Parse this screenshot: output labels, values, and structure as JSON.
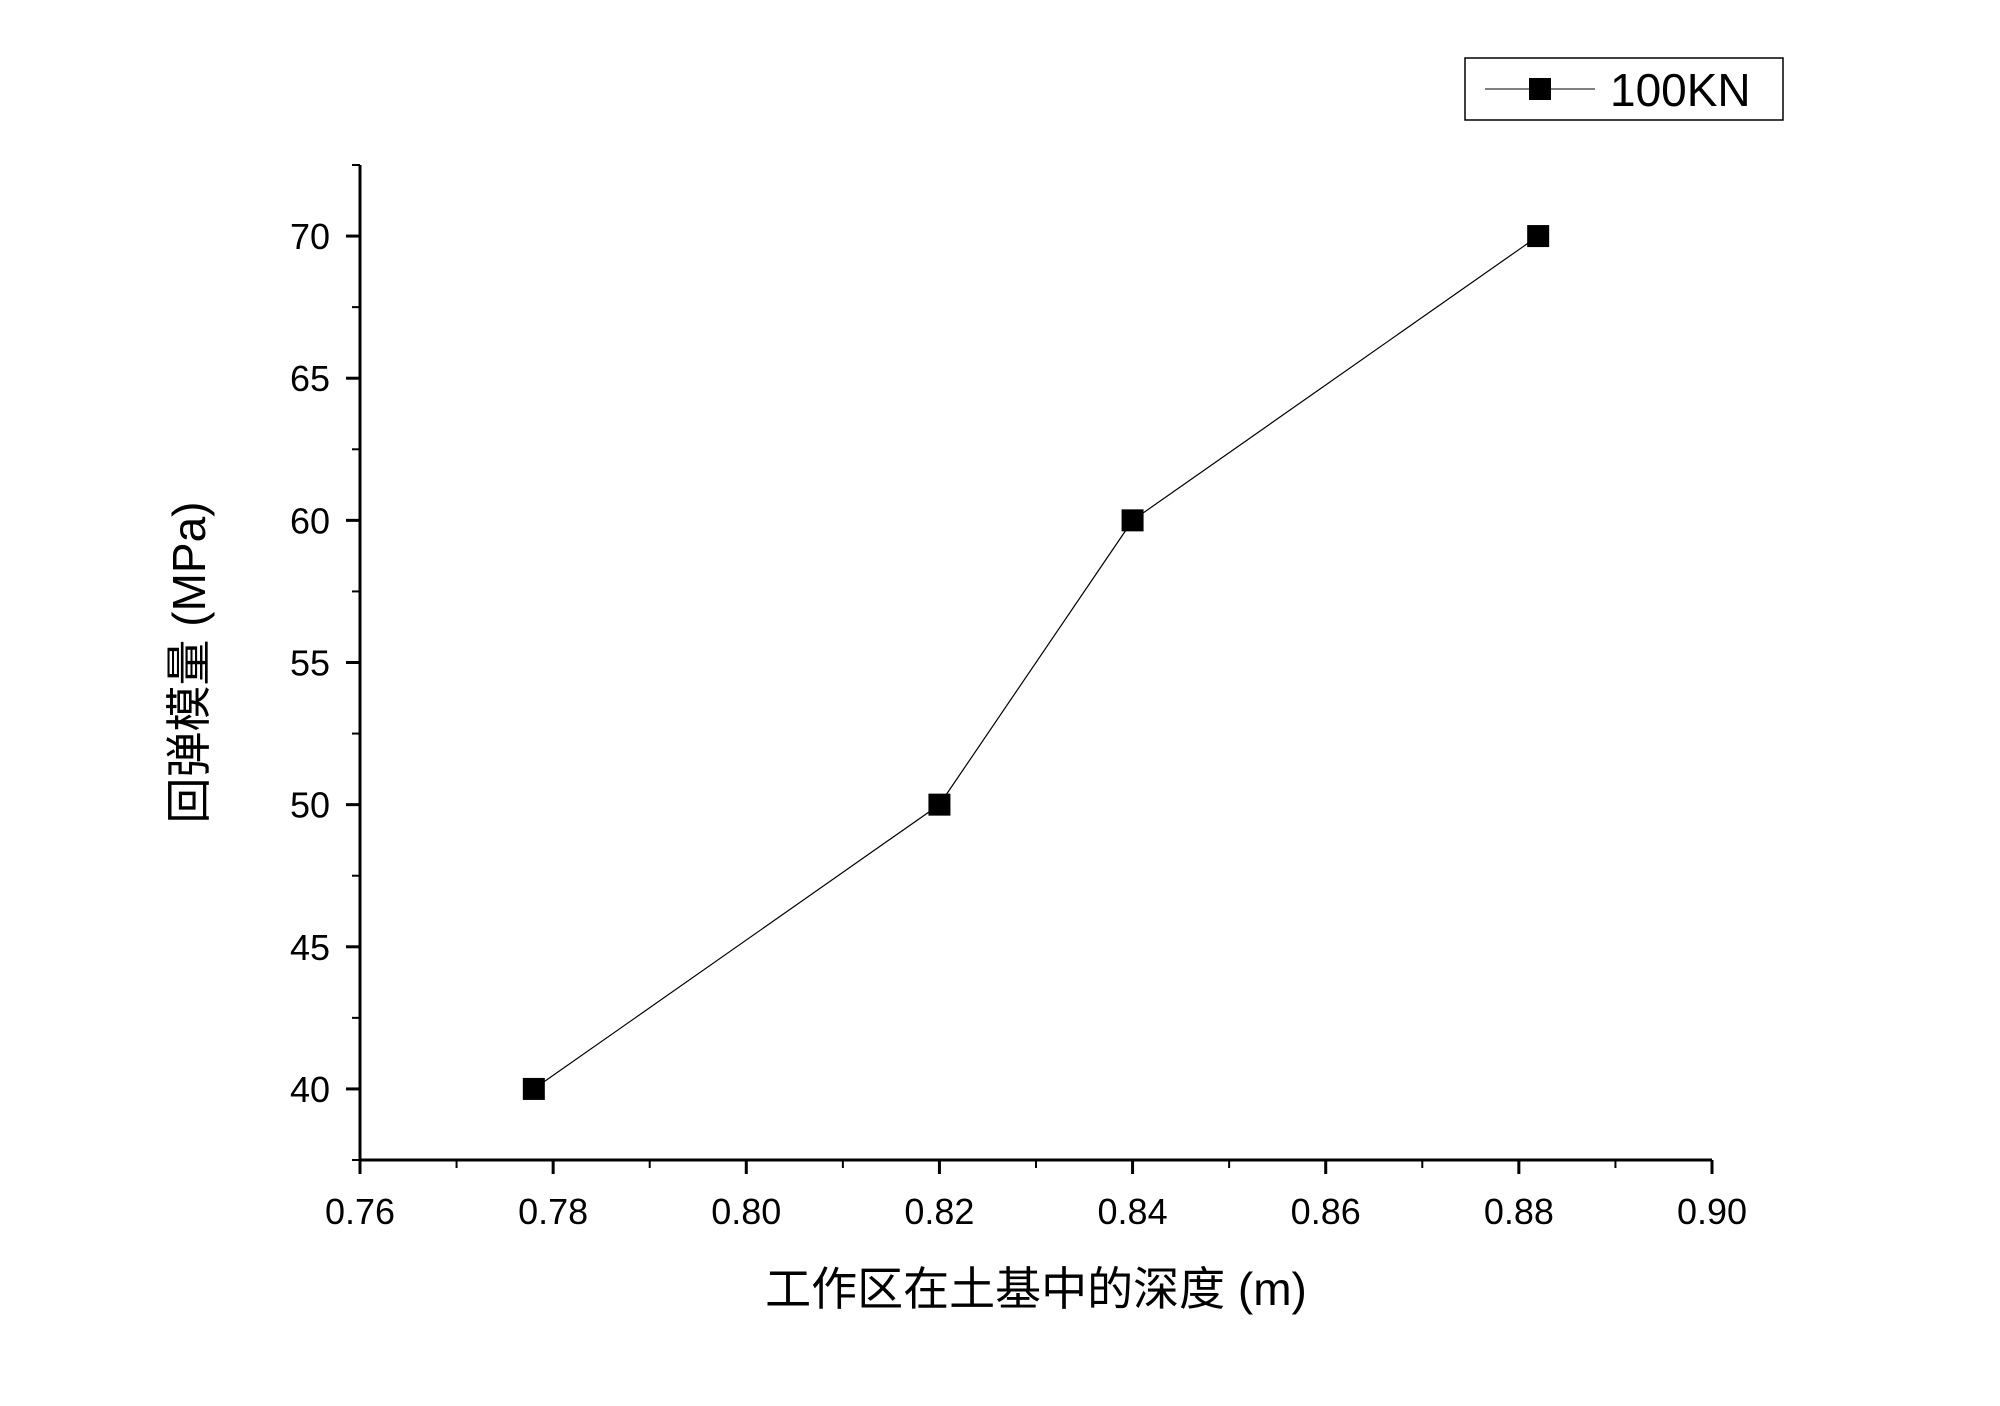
{
  "chart_data": {
    "type": "line",
    "title": "",
    "xlabel": "工作区在土基中的深度 (m)",
    "ylabel": "回弹模量 (MPa)",
    "xlim": [
      0.76,
      0.9
    ],
    "ylim": [
      37.5,
      72.5
    ],
    "x_ticks": [
      0.76,
      0.78,
      0.8,
      0.82,
      0.84,
      0.86,
      0.88,
      0.9
    ],
    "x_tick_labels": [
      "0.76",
      "0.78",
      "0.80",
      "0.82",
      "0.84",
      "0.86",
      "0.88",
      "0.90"
    ],
    "y_ticks": [
      40,
      45,
      50,
      55,
      60,
      65,
      70
    ],
    "y_tick_labels": [
      "40",
      "45",
      "50",
      "55",
      "60",
      "65",
      "70"
    ],
    "grid": false,
    "legend_position": "top-right",
    "series": [
      {
        "name": "100KN",
        "marker": "square",
        "color": "#000000",
        "points": [
          {
            "x": 0.778,
            "y": 40
          },
          {
            "x": 0.82,
            "y": 50
          },
          {
            "x": 0.84,
            "y": 60
          },
          {
            "x": 0.882,
            "y": 70
          }
        ]
      }
    ]
  }
}
